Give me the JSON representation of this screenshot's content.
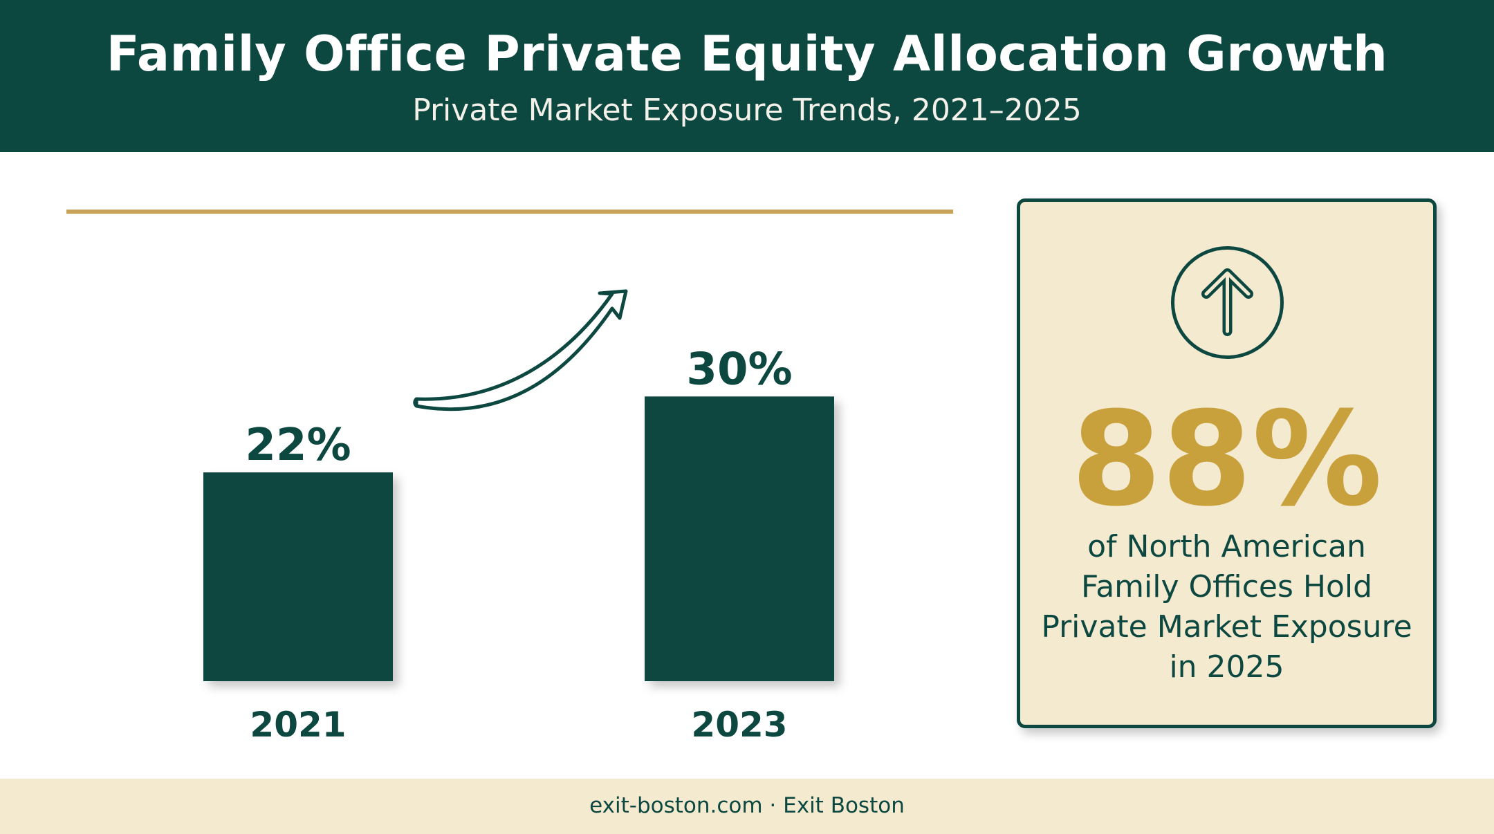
{
  "header": {
    "title": "Family Office Private Equity Allocation Growth",
    "subtitle": "Private Market Exposure Trends, 2021–2025"
  },
  "chart_data": {
    "type": "bar",
    "categories": [
      "2021",
      "2023"
    ],
    "values": [
      22,
      30
    ],
    "value_labels": [
      "22%",
      "30%"
    ],
    "unit": "%",
    "ylim": [
      0,
      36
    ],
    "grid": false,
    "legend": "none",
    "annotation": "growth-arrow"
  },
  "stat_card": {
    "icon": "arrow-up-circle-icon",
    "value": "88%",
    "caption": "of North American Family Offices Hold Private Market Exposure in 2025"
  },
  "footer": {
    "text": "exit-boston.com · Exit Boston"
  },
  "colors": {
    "primary": "#0c4740",
    "accent": "#c9a13c",
    "card_background": "#f4ead0",
    "footer_background": "#f4ead0",
    "rule": "#c9a25a"
  }
}
